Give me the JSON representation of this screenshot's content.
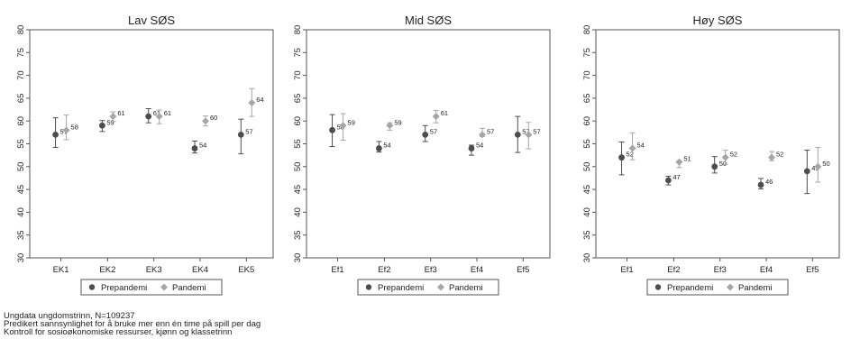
{
  "chart_data": [
    {
      "type": "scatter",
      "title": "Lav SØS",
      "categories": [
        "EK1",
        "EK2",
        "EK3",
        "EK4",
        "EK5"
      ],
      "ylim": [
        30,
        80
      ],
      "yticks": [
        30,
        35,
        40,
        45,
        50,
        55,
        60,
        65,
        70,
        75,
        80
      ],
      "grid": false,
      "legend_position": "bottom",
      "series": [
        {
          "name": "Prepandemi",
          "values": [
            57,
            59,
            61,
            54,
            57
          ],
          "labels": [
            "57",
            "59",
            "61",
            "54",
            "57"
          ],
          "ci_low": [
            54.2,
            57.7,
            59.6,
            53.0,
            52.8
          ],
          "ci_high": [
            60.7,
            60.1,
            62.7,
            55.6,
            60.4
          ]
        },
        {
          "name": "Pandemi",
          "values": [
            58,
            61,
            61,
            60,
            64
          ],
          "labels": [
            "58",
            "61",
            "61",
            "60",
            "64"
          ],
          "ci_low": [
            55.9,
            59.9,
            59.4,
            58.9,
            61.0
          ],
          "ci_high": [
            61.3,
            62.0,
            62.4,
            61.1,
            67.1
          ]
        }
      ]
    },
    {
      "type": "scatter",
      "title": "Mid SØS",
      "categories": [
        "Ef1",
        "Ef2",
        "Ef3",
        "Ef4",
        "Ef5"
      ],
      "ylim": [
        30,
        80
      ],
      "yticks": [
        30,
        35,
        40,
        45,
        50,
        55,
        60,
        65,
        70,
        75,
        80
      ],
      "grid": false,
      "legend_position": "bottom",
      "series": [
        {
          "name": "Prepandemi",
          "values": [
            58,
            54,
            57,
            54,
            57
          ],
          "labels": [
            "58",
            "54",
            "57",
            "54",
            "57"
          ],
          "ci_low": [
            54.4,
            53.2,
            55.5,
            52.5,
            53.1
          ],
          "ci_high": [
            61.4,
            55.5,
            59.0,
            54.7,
            61.0
          ]
        },
        {
          "name": "Pandemi",
          "values": [
            59,
            59,
            61,
            57,
            57
          ],
          "labels": [
            "59",
            "59",
            "61",
            "57",
            "57"
          ],
          "ci_low": [
            55.8,
            58.0,
            59.6,
            56.6,
            53.9
          ],
          "ci_high": [
            61.6,
            59.6,
            62.3,
            58.4,
            59.7
          ]
        }
      ]
    },
    {
      "type": "scatter",
      "title": "Høy SØS",
      "categories": [
        "Ef1",
        "Ef2",
        "Ef3",
        "Ef4",
        "Ef5"
      ],
      "ylim": [
        30,
        80
      ],
      "yticks": [
        30,
        35,
        40,
        45,
        50,
        55,
        60,
        65,
        70,
        75,
        80
      ],
      "grid": false,
      "legend_position": "bottom",
      "series": [
        {
          "name": "Prepandemi",
          "values": [
            52,
            47,
            50,
            46,
            49
          ],
          "labels": [
            "52",
            "47",
            "50",
            "46",
            "49"
          ],
          "ci_low": [
            48.2,
            46.0,
            48.6,
            45.1,
            44.1
          ],
          "ci_high": [
            55.4,
            47.9,
            52.2,
            47.4,
            53.6
          ]
        },
        {
          "name": "Pandemi",
          "values": [
            54,
            51,
            52,
            52,
            50
          ],
          "labels": [
            "54",
            "51",
            "52",
            "52",
            "50"
          ],
          "ci_low": [
            51.5,
            49.8,
            50.5,
            51.3,
            46.6
          ],
          "ci_high": [
            57.4,
            51.3,
            53.6,
            53.3,
            54.2
          ]
        }
      ]
    }
  ],
  "footnotes": [
    "Ungdata ungdomstrinn, N=109237",
    "Predikert sannsynlighet for å bruke mer enn én time på spill per dag",
    "Kontroll for sosioøkonomiske ressurser, kjønn og klassetrinn"
  ],
  "colors": {
    "prepandemi": "#4d4d4d",
    "pandemi": "#a6a6a6",
    "panel_border": "#555555",
    "text": "#222222"
  }
}
